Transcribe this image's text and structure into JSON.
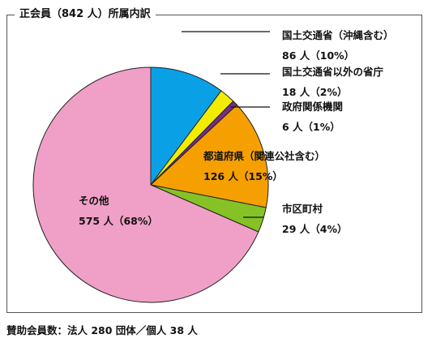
{
  "title": "正会員（842 人）所属内訳",
  "footer": "賛助会員数：法人 280 団体／個人 38 人",
  "colors": {
    "mlit": "#0aa0e6",
    "other_ministries": "#f2ec00",
    "government_agencies": "#7a2a86",
    "prefectures": "#f5a000",
    "municipalities": "#86c226",
    "others": "#f0a0c6"
  },
  "chart_data": {
    "type": "pie",
    "title": "正会員（842 人）所属内訳",
    "unit": "人",
    "slices": [
      {
        "key": "mlit",
        "label": "国土交通省（沖縄含む）",
        "value": 86,
        "value_label": "86 人（10%）"
      },
      {
        "key": "other_ministries",
        "label": "国土交通省以外の省庁",
        "value": 18,
        "value_label": "18 人（2%）"
      },
      {
        "key": "government_agencies",
        "label": "政府関係機関",
        "value": 6,
        "value_label": "6 人（1%）"
      },
      {
        "key": "prefectures",
        "label": "都道府県（関連公社含む）",
        "value": 126,
        "value_label": "126 人（15%）"
      },
      {
        "key": "municipalities",
        "label": "市区町村",
        "value": 29,
        "value_label": "29 人（4%）"
      },
      {
        "key": "others",
        "label": "その他",
        "value": 575,
        "value_label": "575 人（68%）"
      }
    ]
  }
}
